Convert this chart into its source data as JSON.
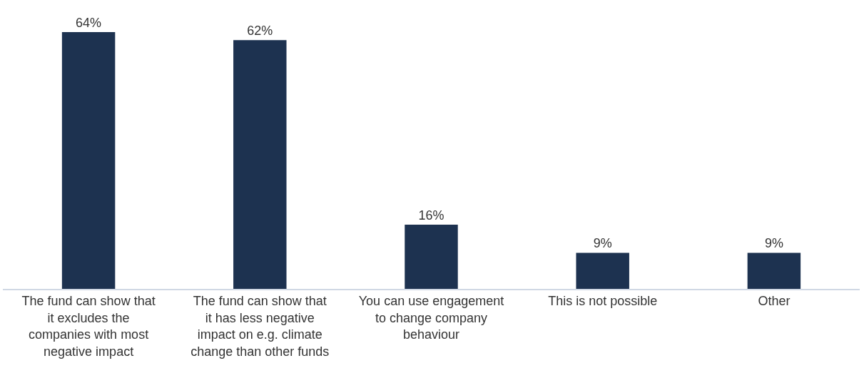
{
  "chart_data": {
    "type": "bar",
    "categories": [
      "The fund can show that it excludes the companies with most negative impact",
      "The fund can show that it has less negative impact on e.g. climate change than other funds",
      "You can use engagement to change company behaviour",
      "This is not possible",
      "Other"
    ],
    "values": [
      64,
      62,
      16,
      9,
      9
    ],
    "value_labels": [
      "64%",
      "62%",
      "16%",
      "9%",
      "9%"
    ],
    "color": "#1d3250"
  }
}
